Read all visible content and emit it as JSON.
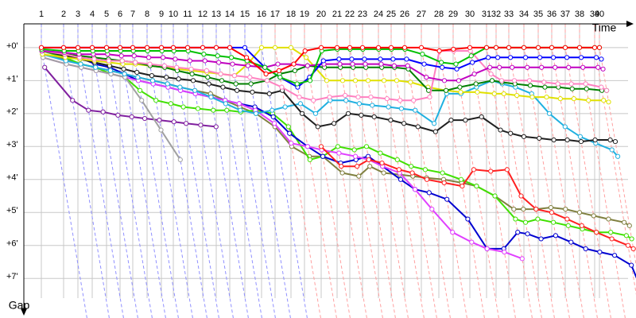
{
  "chart_data": {
    "type": "gap-line",
    "x_label": "Time",
    "y_label": "Gap",
    "xlim": [
      0,
      76
    ],
    "ylim": [
      -0.72,
      8.2
    ],
    "xticks": [
      {
        "value": 2.2,
        "label": "1"
      },
      {
        "value": 5.0,
        "label": "2"
      },
      {
        "value": 6.8,
        "label": "3"
      },
      {
        "value": 8.6,
        "label": "4"
      },
      {
        "value": 10.4,
        "label": "5"
      },
      {
        "value": 12.1,
        "label": "6"
      },
      {
        "value": 13.7,
        "label": "7"
      },
      {
        "value": 15.5,
        "label": "8"
      },
      {
        "value": 17.3,
        "label": "9"
      },
      {
        "value": 18.8,
        "label": "10"
      },
      {
        "value": 20.6,
        "label": "11"
      },
      {
        "value": 22.5,
        "label": "12"
      },
      {
        "value": 24.2,
        "label": "13"
      },
      {
        "value": 25.9,
        "label": "14"
      },
      {
        "value": 27.8,
        "label": "15"
      },
      {
        "value": 29.9,
        "label": "16"
      },
      {
        "value": 31.6,
        "label": "17"
      },
      {
        "value": 33.6,
        "label": "18"
      },
      {
        "value": 35.3,
        "label": "19"
      },
      {
        "value": 37.4,
        "label": "20"
      },
      {
        "value": 39.4,
        "label": "21"
      },
      {
        "value": 41.0,
        "label": "22"
      },
      {
        "value": 42.6,
        "label": "23"
      },
      {
        "value": 44.6,
        "label": "24"
      },
      {
        "value": 46.2,
        "label": "25"
      },
      {
        "value": 47.9,
        "label": "26"
      },
      {
        "value": 50.0,
        "label": "27"
      },
      {
        "value": 52.2,
        "label": "28"
      },
      {
        "value": 54.0,
        "label": "29"
      },
      {
        "value": 56.1,
        "label": "30"
      },
      {
        "value": 58.2,
        "label": "31"
      },
      {
        "value": 59.4,
        "label": "32"
      },
      {
        "value": 61.0,
        "label": "33"
      },
      {
        "value": 62.9,
        "label": "34"
      },
      {
        "value": 64.7,
        "label": "35"
      },
      {
        "value": 66.4,
        "label": "36"
      },
      {
        "value": 68.1,
        "label": "37"
      },
      {
        "value": 69.9,
        "label": "38"
      },
      {
        "value": 71.8,
        "label": "39"
      },
      {
        "value": 72.4,
        "label": "40"
      }
    ],
    "yticks": [
      {
        "value": 0,
        "label": "+0'"
      },
      {
        "value": 1,
        "label": "+1'"
      },
      {
        "value": 2,
        "label": "+2'"
      },
      {
        "value": 3,
        "label": "+3'"
      },
      {
        "value": 4,
        "label": "+4'"
      },
      {
        "value": 5,
        "label": "+5'"
      },
      {
        "value": 6,
        "label": "+6'"
      },
      {
        "value": 7,
        "label": "+7'"
      }
    ],
    "grid": true,
    "series": [
      {
        "color": "#808040",
        "values": [
          0.2,
          0.35,
          0.5,
          0.6,
          0.7,
          0.8,
          0.9,
          1.0,
          1.1,
          1.2,
          1.3,
          1.4,
          1.6,
          1.8,
          2.0,
          2.4,
          3.0,
          3.3,
          3.3,
          3.8,
          3.9,
          3.6,
          3.8,
          3.85,
          3.9,
          3.95,
          4.0,
          4.1,
          4.2,
          4.5,
          4.9,
          4.9,
          4.9,
          4.85,
          4.9,
          5.0,
          5.1,
          5.2,
          5.3,
          5.4
        ]
      },
      {
        "color": "#40e000",
        "values": [
          0.1,
          0.3,
          0.5,
          0.6,
          0.8,
          0.9,
          1.3,
          1.6,
          1.7,
          1.8,
          1.85,
          1.9,
          1.9,
          1.95,
          1.9,
          2.0,
          2.4,
          3.4,
          3.3,
          3.0,
          3.1,
          3.0,
          3.2,
          3.4,
          3.6,
          3.7,
          3.8,
          4.0,
          4.2,
          4.5,
          5.2,
          5.3,
          5.2,
          5.3,
          5.4,
          5.5,
          5.6,
          5.6,
          5.7,
          5.8
        ]
      },
      {
        "color": "#0000d0",
        "values": [
          0.1,
          0.2,
          0.3,
          0.5,
          0.6,
          0.8,
          1.0,
          1.1,
          1.2,
          1.3,
          1.4,
          1.5,
          1.6,
          1.7,
          1.8,
          2.1,
          2.6,
          3.0,
          3.3,
          3.5,
          3.4,
          3.3,
          3.6,
          4.0,
          4.3,
          4.4,
          4.6,
          5.2,
          6.1,
          6.1,
          5.6,
          5.65,
          5.8,
          5.7,
          5.9,
          6.1,
          6.2,
          6.3,
          6.6,
          7.2
        ]
      },
      {
        "color": "#e040ff",
        "values": [
          0.3,
          0.5,
          0.6,
          0.7,
          0.8,
          0.9,
          1.0,
          1.1,
          1.2,
          1.3,
          1.4,
          1.5,
          1.6,
          1.7,
          1.9,
          2.3,
          2.9,
          3.0,
          3.1,
          3.2,
          3.3,
          3.4,
          3.6,
          3.8,
          4.3,
          4.9,
          5.6,
          5.9,
          6.1,
          6.2,
          6.4,
          null,
          null,
          null,
          null,
          null,
          null,
          null,
          null,
          null
        ]
      },
      {
        "color": "#ff2020",
        "values": [
          null,
          null,
          null,
          null,
          null,
          null,
          null,
          null,
          null,
          null,
          null,
          null,
          null,
          null,
          null,
          null,
          null,
          null,
          3.0,
          3.6,
          3.6,
          3.4,
          3.5,
          3.7,
          3.8,
          4.0,
          4.1,
          4.2,
          3.7,
          3.75,
          3.7,
          4.5,
          4.9,
          5.0,
          5.2,
          5.4,
          5.6,
          5.8,
          6.0,
          6.1
        ]
      },
      {
        "color": "#80209f",
        "values": [
          0.6,
          1.6,
          1.9,
          1.95,
          2.05,
          2.1,
          2.15,
          2.2,
          2.25,
          2.3,
          2.35,
          2.4,
          null,
          null,
          null,
          null,
          null,
          null,
          null,
          null,
          null,
          null,
          null,
          null,
          null,
          null,
          null,
          null,
          null,
          null,
          null,
          null,
          null,
          null,
          null,
          null,
          null,
          null,
          null,
          null
        ]
      },
      {
        "color": "#a0a0a0",
        "values": [
          0.3,
          0.5,
          0.6,
          0.7,
          0.8,
          0.9,
          1.6,
          2.5,
          3.4,
          null,
          null,
          null,
          null,
          null,
          null,
          null,
          null,
          null,
          null,
          null,
          null,
          null,
          null,
          null,
          null,
          null,
          null,
          null,
          null,
          null,
          null,
          null,
          null,
          null,
          null,
          null,
          null,
          null,
          null,
          null
        ]
      },
      {
        "color": "#20b0e0",
        "values": [
          0.2,
          0.4,
          0.5,
          0.6,
          0.7,
          0.8,
          0.9,
          1.0,
          1.1,
          1.2,
          1.3,
          1.5,
          1.7,
          1.9,
          2.0,
          1.9,
          1.8,
          1.7,
          2.0,
          1.6,
          1.6,
          1.7,
          1.75,
          1.8,
          1.85,
          1.9,
          2.3,
          1.4,
          1.4,
          1.2,
          1.0,
          1.1,
          1.2,
          1.4,
          2.0,
          2.4,
          2.7,
          2.9,
          3.1,
          3.3
        ]
      },
      {
        "color": "#202020",
        "values": [
          0.1,
          0.25,
          0.35,
          0.45,
          0.55,
          0.65,
          0.75,
          0.85,
          0.9,
          0.95,
          1.0,
          1.1,
          1.2,
          1.3,
          1.35,
          1.4,
          1.3,
          2.0,
          2.4,
          2.3,
          2.0,
          2.05,
          2.1,
          2.2,
          2.3,
          2.4,
          2.55,
          2.2,
          2.2,
          2.1,
          2.5,
          2.6,
          2.7,
          2.75,
          2.8,
          2.8,
          2.85,
          2.8,
          2.8,
          2.85
        ]
      },
      {
        "color": "#e0e000",
        "values": [
          0.2,
          0.3,
          0.35,
          0.4,
          0.45,
          0.5,
          0.5,
          0.55,
          0.6,
          0.65,
          0.7,
          0.75,
          0.8,
          0.85,
          0.5,
          0,
          0,
          0,
          0.3,
          1.0,
          1.0,
          1.0,
          1.0,
          1.0,
          1.0,
          1.05,
          1.2,
          1.3,
          1.35,
          1.35,
          1.4,
          1.4,
          1.45,
          1.5,
          1.5,
          1.55,
          1.55,
          1.6,
          1.6,
          1.65
        ]
      },
      {
        "color": "#008000",
        "values": [
          0.1,
          0.2,
          0.25,
          0.3,
          0.35,
          0.4,
          0.45,
          0.55,
          0.6,
          0.7,
          0.8,
          0.9,
          1.0,
          1.1,
          1.1,
          1.0,
          0.8,
          0.7,
          0.55,
          0.6,
          0.6,
          0.6,
          0.6,
          0.6,
          0.6,
          0.65,
          1.3,
          1.3,
          1.2,
          1.1,
          1.0,
          1.05,
          1.1,
          1.15,
          1.2,
          1.2,
          1.25,
          1.25,
          1.3,
          1.3
        ]
      },
      {
        "color": "#ff80c0",
        "values": [
          0.1,
          0.2,
          0.3,
          0.35,
          0.4,
          0.4,
          0.45,
          0.5,
          0.55,
          0.6,
          0.65,
          0.7,
          0.8,
          0.85,
          0.9,
          1.0,
          1.2,
          1.5,
          1.6,
          1.5,
          1.45,
          1.5,
          1.5,
          1.55,
          1.6,
          1.6,
          1.5,
          0.1,
          0.1,
          0.1,
          0.8,
          1.0,
          1.0,
          1.0,
          1.05,
          1.1,
          1.1,
          1.1,
          1.2,
          1.3
        ]
      },
      {
        "color": "#c000c0",
        "values": [
          0.1,
          0.15,
          0.2,
          0.2,
          0.2,
          0.25,
          0.25,
          0.3,
          0.3,
          0.35,
          0.4,
          0.4,
          0.45,
          0.5,
          0.55,
          0.6,
          0.5,
          0.5,
          0.55,
          0.5,
          0.5,
          0.5,
          0.5,
          0.5,
          0.55,
          0.55,
          0.9,
          1.0,
          1.0,
          0.8,
          0.6,
          0.6,
          0.6,
          0.6,
          0.6,
          0.6,
          0.6,
          0.6,
          0.6,
          0.65
        ]
      },
      {
        "color": "#0000ff",
        "values": [
          0,
          0,
          0,
          0,
          0,
          0,
          0,
          0,
          0,
          0,
          0,
          0,
          0,
          0,
          0,
          0.6,
          0.9,
          1.2,
          0.9,
          0.4,
          0.35,
          0.35,
          0.35,
          0.35,
          0.35,
          0.35,
          0.5,
          0.6,
          0.65,
          0.45,
          0.3,
          0.3,
          0.3,
          0.3,
          0.3,
          0.3,
          0.3,
          0.3,
          0.3,
          0.35
        ]
      },
      {
        "color": "#00c000",
        "values": [
          0.05,
          0.1,
          0.1,
          0.1,
          0.1,
          0.1,
          0.1,
          0.1,
          0.1,
          0.1,
          0.1,
          0.2,
          0.25,
          0.3,
          0.4,
          0.6,
          0.9,
          1.1,
          1.0,
          0.1,
          0.05,
          0.05,
          0.05,
          0.05,
          0.05,
          0.05,
          0.2,
          0.45,
          0.5,
          0.25,
          0,
          0,
          0,
          0,
          0,
          0,
          0,
          0,
          0,
          0
        ]
      },
      {
        "color": "#ff0000",
        "values": [
          0,
          0,
          0,
          0,
          0,
          0,
          0,
          0,
          0,
          0,
          0,
          0,
          0,
          0,
          0.3,
          0.8,
          0.7,
          0.5,
          0.1,
          0,
          0,
          0,
          0,
          0,
          0,
          0,
          0,
          0.1,
          0.05,
          0,
          0,
          0,
          0,
          0,
          0,
          0,
          0,
          0,
          0,
          0
        ]
      }
    ]
  }
}
